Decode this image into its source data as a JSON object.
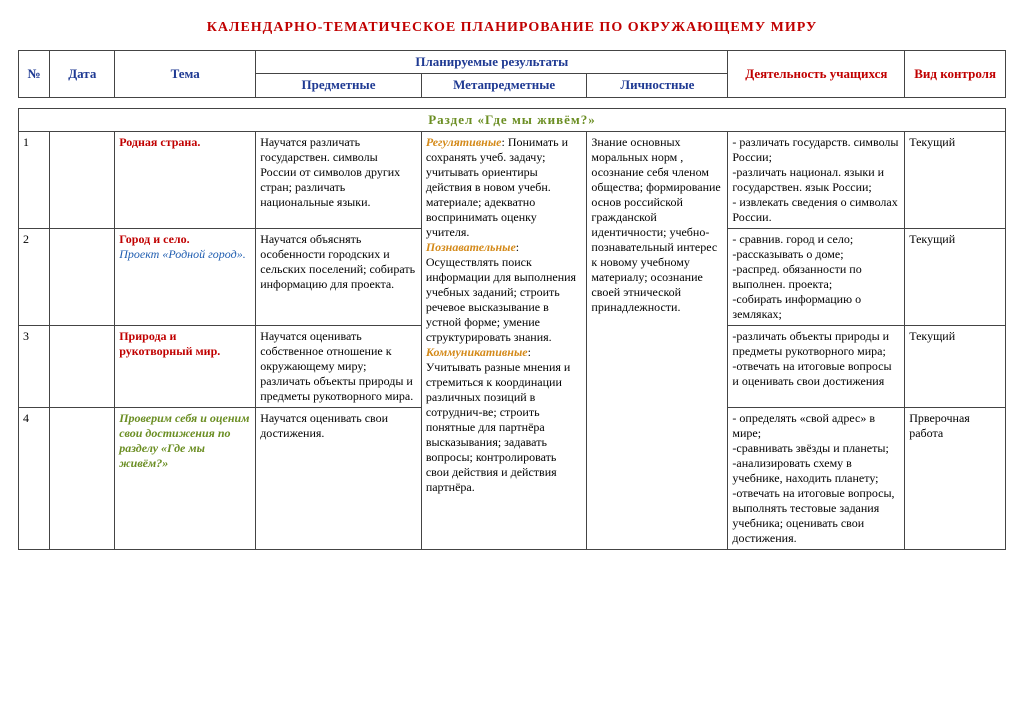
{
  "title": "КАЛЕНДАРНО-ТЕМАТИЧЕСКОЕ   ПЛАНИРОВАНИЕ   ПО   ОКРУЖАЮЩЕМУ   МИРУ",
  "columns": {
    "num": "№",
    "date": "Дата",
    "topic": "Тема",
    "planned": "Планируемые результаты",
    "subject": "Предметные",
    "meta": "Метапредметные",
    "personal": "Личностные",
    "activity": "Деятельность учащихся",
    "control": "Вид контроля"
  },
  "section_header": "Раздел     «Где    мы    живём?»",
  "col_widths": [
    "28px",
    "58px",
    "126px",
    "148px",
    "148px",
    "126px",
    "158px",
    "90px"
  ],
  "meta_block": {
    "reg_label": "Регулятивные",
    "reg_text": ": Понимать и сохранять учеб. задачу; учитывать ориентиры действия в новом учебн. материале; адекватно воспринимать оценку учителя.",
    "cog_label": "Познавательные",
    "cog_text": ": Осуществлять поиск информации для выполнения учебных заданий; строить речевое высказывание в устной форме; умение структурировать знания.",
    "com_label": "Коммуникативные",
    "com_text": ": Учитывать разные мнения и стремиться к координации различных позиций в сотруднич-ве; строить понятные для партнёра высказывания; задавать вопросы; контролировать свои действия и действия партнёра."
  },
  "personal_block": "Знание основных моральных норм , осознание себя членом общества; формирование основ российской гражданской идентичности; учебно-познавательный интерес к новому учебному материалу; осознание своей этнической принадлежности.",
  "rows": [
    {
      "num": "1",
      "topic_red": "Родная страна.",
      "subject": "Научатся различать государствен.  символы России от символов других стран; различать национальные языки.",
      "activity": "- различать государств. символы России;\n-различать национал. языки и государствен. язык России;\n- извлекать  сведения о символах России.",
      "control": "Текущий"
    },
    {
      "num": "2",
      "topic_red": "Город и село.",
      "topic_blue": "Проект «Родной город».",
      "subject": "Научатся объяснять особенности городских и сельских поселений; собирать информацию для проекта.",
      "activity": "- сравнив. город и село;\n-рассказывать о доме;\n-распред. обязанности по выполнен. проекта;\n-собирать информацию о земляках;",
      "control": "Текущий"
    },
    {
      "num": "3",
      "topic_red": "Природа и рукотворный мир.",
      "subject": "Научатся оценивать собственное отношение к окружающему миру; различать объекты природы и предметы рукотворного мира.",
      "activity": "-различать объекты природы и  предметы рукотворного мира;\n-отвечать на итоговые вопросы и оценивать свои достижения",
      "control": " Текущий"
    },
    {
      "num": "4",
      "topic_green": "Проверим себя и оценим свои достижения по разделу «Где мы живём?»",
      "subject": "Научатся оценивать свои достижения.",
      "activity": "- определять «свой адрес» в мире;\n-сравнивать звёзды и планеты;\n-анализировать схему в учебнике, находить планету;\n-отвечать на итоговые вопросы, выполнять тестовые задания учебника; оценивать свои достижения.",
      "control": "Прверочная работа"
    }
  ]
}
